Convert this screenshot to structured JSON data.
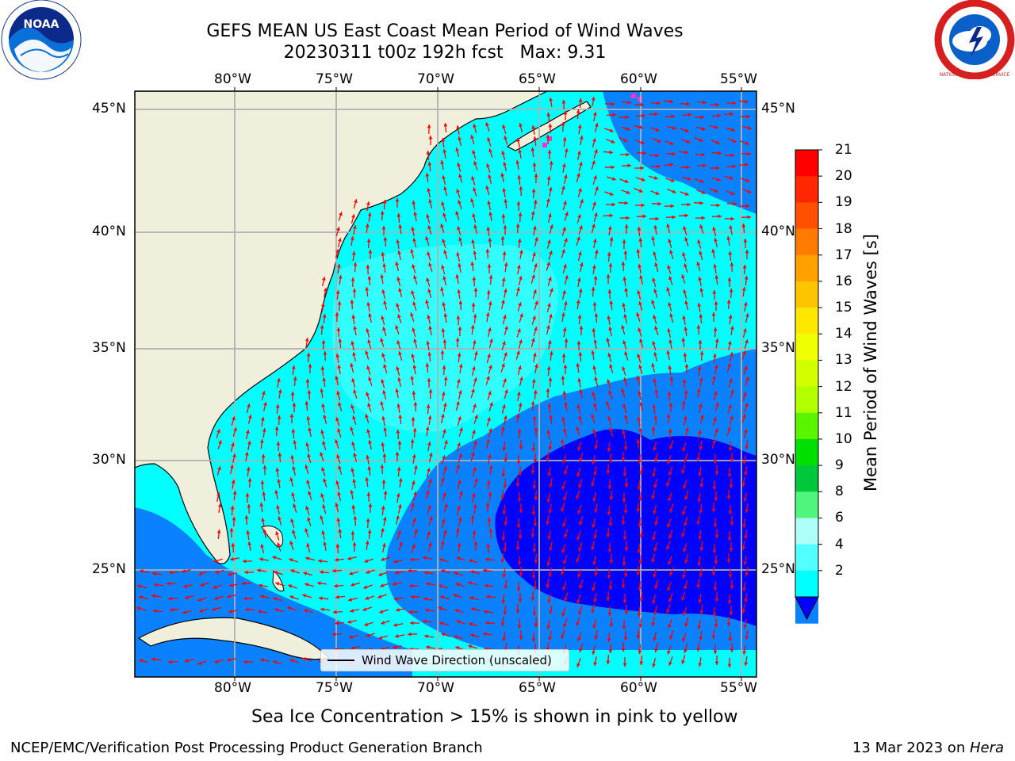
{
  "header": {
    "title_line1": "GEFS MEAN US East Coast Mean Period of Wind Waves",
    "title_line2": "20230311 t00z 192h fcst   Max: 9.31"
  },
  "logos": {
    "noaa_text": "NOAA",
    "nws_text": "NATIONAL WEATHER SERVICE"
  },
  "map": {
    "lon_ticks": [
      "80°W",
      "75°W",
      "70°W",
      "65°W",
      "60°W",
      "55°W"
    ],
    "lat_ticks_left": [
      "45°N",
      "40°N",
      "35°N",
      "30°N",
      "25°N"
    ],
    "lat_ticks_right": [
      "45°N",
      "40°N",
      "35°N",
      "30°N",
      "25°N"
    ],
    "legend_label": "Wind Wave Direction (unscaled)",
    "arrow_color": "#ff0000",
    "land_color": "#efefdc"
  },
  "colorbar": {
    "title": "Mean Period of Wind Waves [s]",
    "ticks": [
      "21",
      "20",
      "19",
      "18",
      "17",
      "16",
      "15",
      "14",
      "13",
      "12",
      "11",
      "10",
      "9",
      "8",
      "6",
      "4",
      "2"
    ],
    "colors": [
      "#ff0000",
      "#ff2600",
      "#ff5000",
      "#ff7a00",
      "#ff9f00",
      "#ffc400",
      "#ffe800",
      "#f0ff00",
      "#d2ff00",
      "#b2ff00",
      "#5cf500",
      "#00e000",
      "#00c83c",
      "#50f57d",
      "#adfff7",
      "#54ffff",
      "#00ffff",
      "#0a81ff"
    ],
    "extend_color": "#0000ff"
  },
  "caption": "Sea Ice Concentration > 15% is shown in pink to yellow",
  "footer": {
    "left": "NCEP/EMC/Verification Post Processing Product Generation Branch",
    "right_date": "13 Mar 2023 on ",
    "right_host": "Hera"
  }
}
